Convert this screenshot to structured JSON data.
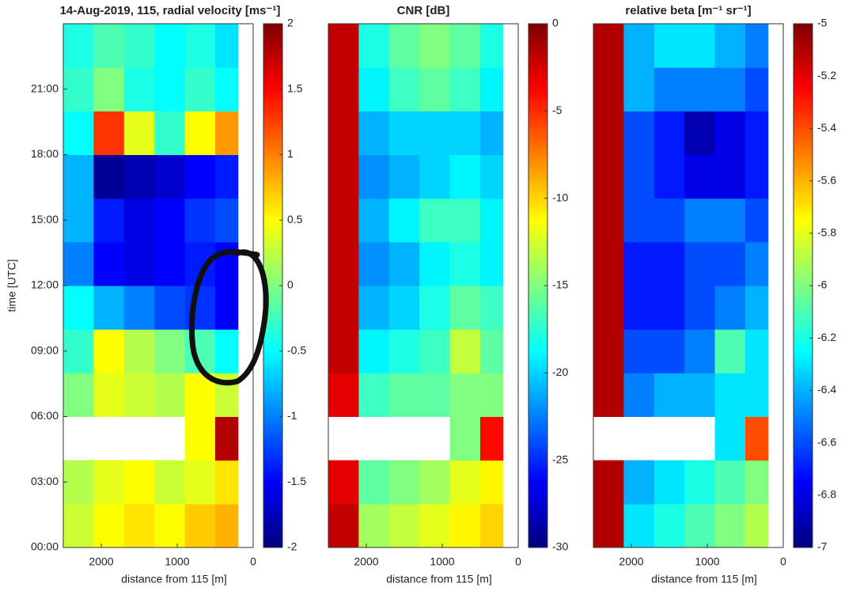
{
  "chart_data": [
    {
      "type": "heatmap",
      "title": "14-Aug-2019, 115, radial velocity [ms⁻¹]",
      "x_label": "distance from 115 [m]",
      "y_label": "time [UTC]",
      "xlim": [
        2500,
        0
      ],
      "xticks": [
        2000,
        1000,
        0
      ],
      "ylim": [
        0,
        24
      ],
      "yticks": [
        {
          "value": 0,
          "label": "00:00"
        },
        {
          "value": 3,
          "label": "03:00"
        },
        {
          "value": 6,
          "label": "06:00"
        },
        {
          "value": 9,
          "label": "09:00"
        },
        {
          "value": 12,
          "label": "12:00"
        },
        {
          "value": 15,
          "label": "15:00"
        },
        {
          "value": 18,
          "label": "18:00"
        },
        {
          "value": 21,
          "label": "21:00"
        }
      ],
      "colormap": "jet",
      "clim": [
        -2,
        2
      ],
      "cticks": [
        -2,
        -1.5,
        -1,
        -0.5,
        0,
        0.5,
        1,
        1.5,
        2
      ],
      "x_edges": [
        2500,
        2100,
        1700,
        1300,
        900,
        500,
        200
      ],
      "y_edges": [
        0,
        2,
        4,
        6,
        8,
        10,
        12,
        14,
        16,
        18,
        20,
        22,
        24
      ],
      "z": [
        [
          0.3,
          0.5,
          0.6,
          0.5,
          0.7,
          0.8
        ],
        [
          0.2,
          0.4,
          0.5,
          0.3,
          0.4,
          0.6
        ],
        [
          null,
          null,
          null,
          null,
          0.5,
          1.8
        ],
        [
          0,
          0.4,
          0.3,
          0.2,
          0.5,
          0.3
        ],
        [
          -0.3,
          0.5,
          0.2,
          0,
          -0.2,
          -0.5
        ],
        [
          -0.5,
          -0.8,
          -1,
          -1.2,
          -1.3,
          -1.5
        ],
        [
          -1,
          -1.5,
          -1.6,
          -1.5,
          -1.4,
          -1.5
        ],
        [
          -0.8,
          -1.4,
          -1.6,
          -1.5,
          -1.3,
          -1.2
        ],
        [
          -0.8,
          -1.9,
          -1.8,
          -1.7,
          -1.5,
          -1.4
        ],
        [
          -0.5,
          1.3,
          0.4,
          -0.3,
          0.5,
          0.9
        ],
        [
          -0.3,
          0,
          -0.4,
          -0.5,
          -0.3,
          -0.5
        ],
        [
          -0.4,
          -0.2,
          -0.3,
          -0.5,
          -0.4,
          -0.6
        ]
      ]
    },
    {
      "type": "heatmap",
      "title": "CNR [dB]",
      "x_label": "distance from 115 [m]",
      "xlim": [
        2500,
        0
      ],
      "xticks": [
        2000,
        1000,
        0
      ],
      "ylim": [
        0,
        24
      ],
      "colormap": "jet",
      "clim": [
        -30,
        0
      ],
      "cticks": [
        -30,
        -25,
        -20,
        -15,
        -10,
        -5,
        0
      ],
      "x_edges": [
        2500,
        2100,
        1700,
        1300,
        900,
        500,
        200
      ],
      "y_edges": [
        0,
        2,
        4,
        6,
        8,
        10,
        12,
        14,
        16,
        18,
        20,
        22,
        24
      ],
      "z": [
        [
          -2,
          -14,
          -13,
          -12,
          -11,
          -10
        ],
        [
          -3,
          -16,
          -15,
          -14,
          -12,
          -11
        ],
        [
          null,
          null,
          null,
          null,
          -15,
          -4
        ],
        [
          -3,
          -17,
          -16,
          -16,
          -15,
          -15
        ],
        [
          -2,
          -19,
          -18,
          -17,
          -13,
          -16
        ],
        [
          -2,
          -21,
          -20,
          -18,
          -16,
          -17
        ],
        [
          -2,
          -22,
          -21,
          -19,
          -18,
          -19
        ],
        [
          -2,
          -21,
          -19,
          -17,
          -17,
          -19
        ],
        [
          -2,
          -22,
          -21,
          -20,
          -19,
          -20
        ],
        [
          -2,
          -21,
          -20,
          -20,
          -20,
          -21
        ],
        [
          -2,
          -19,
          -17,
          -16,
          -17,
          -19
        ],
        [
          -2,
          -18,
          -16,
          -15,
          -16,
          -18
        ]
      ]
    },
    {
      "type": "heatmap",
      "title": "relative beta [m⁻¹ sr⁻¹]",
      "x_label": "distance from 115 [m]",
      "xlim": [
        2500,
        0
      ],
      "xticks": [
        2000,
        1000,
        0
      ],
      "ylim": [
        0,
        24
      ],
      "colormap": "jet",
      "clim": [
        -7,
        -5
      ],
      "cticks": [
        -7,
        -6.8,
        -6.6,
        -6.4,
        -6.2,
        -6,
        -5.8,
        -5.6,
        -5.4,
        -5.2,
        -5
      ],
      "x_edges": [
        2500,
        2100,
        1700,
        1300,
        900,
        500,
        200
      ],
      "y_edges": [
        0,
        2,
        4,
        6,
        8,
        10,
        12,
        14,
        16,
        18,
        20,
        22,
        24
      ],
      "z": [
        [
          -5.1,
          -6.3,
          -6.2,
          -6.1,
          -6.0,
          -5.9
        ],
        [
          -5.1,
          -6.4,
          -6.3,
          -6.2,
          -6.1,
          -6.0
        ],
        [
          null,
          null,
          null,
          null,
          -6.3,
          -5.4
        ],
        [
          -5.1,
          -6.5,
          -6.4,
          -6.4,
          -6.3,
          -6.3
        ],
        [
          -5.1,
          -6.6,
          -6.6,
          -6.5,
          -6.1,
          -6.3
        ],
        [
          -5.1,
          -6.7,
          -6.7,
          -6.6,
          -6.5,
          -6.4
        ],
        [
          -5.1,
          -6.7,
          -6.7,
          -6.6,
          -6.6,
          -6.5
        ],
        [
          -5.1,
          -6.6,
          -6.6,
          -6.5,
          -6.5,
          -6.6
        ],
        [
          -5.1,
          -6.6,
          -6.7,
          -6.8,
          -6.8,
          -6.7
        ],
        [
          -5.1,
          -6.6,
          -6.7,
          -6.9,
          -6.8,
          -6.7
        ],
        [
          -5.1,
          -6.4,
          -6.5,
          -6.5,
          -6.5,
          -6.6
        ],
        [
          -5.1,
          -6.4,
          -6.3,
          -6.3,
          -6.4,
          -6.5
        ]
      ]
    }
  ]
}
